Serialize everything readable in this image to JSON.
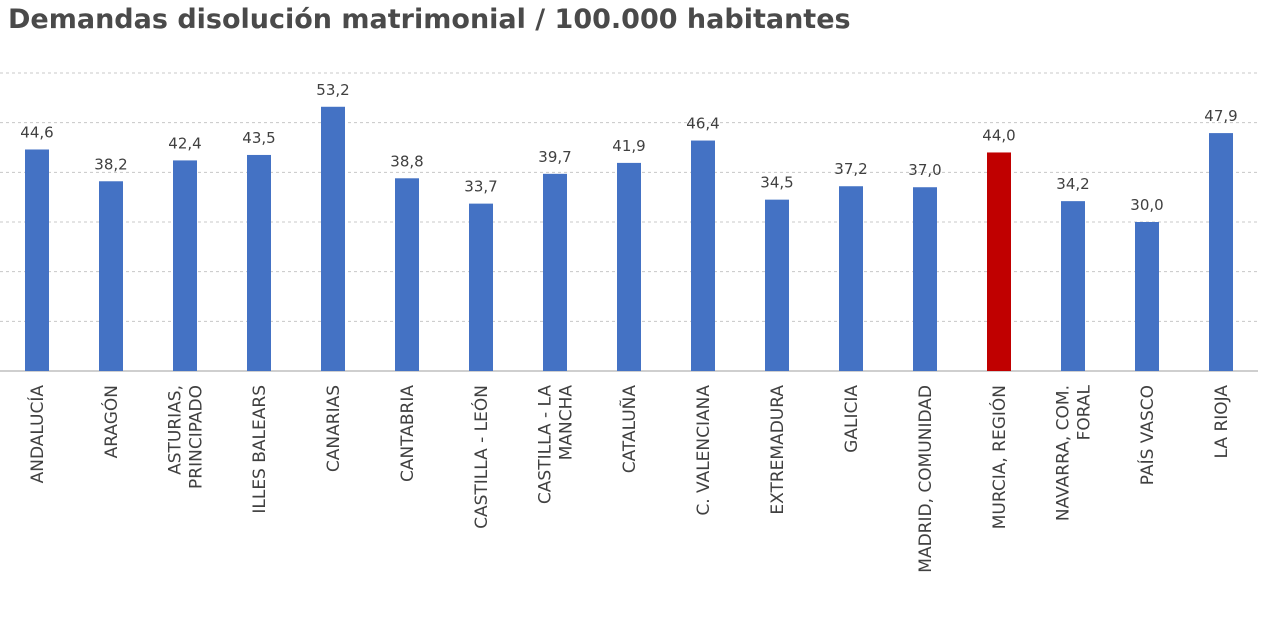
{
  "chart_data": {
    "type": "bar",
    "title": "Demandas disolución matrimonial / 100.000 habitantes",
    "xlabel": "",
    "ylabel": "",
    "ylim": [
      0,
      60
    ],
    "grid": true,
    "legend": "none",
    "bar_color": "#4472c4",
    "highlight_color": "#c00000",
    "highlight_index": 13,
    "categories": [
      [
        "ANDALUCÍA"
      ],
      [
        "ARAGÓN"
      ],
      [
        "ASTURIAS,",
        "PRINCIPADO"
      ],
      [
        "ILLES BALEARS"
      ],
      [
        "CANARIAS"
      ],
      [
        "CANTABRIA"
      ],
      [
        "CASTILLA - LEÓN"
      ],
      [
        "CASTILLA - LA",
        "MANCHA"
      ],
      [
        "CATALUÑA"
      ],
      [
        "C. VALENCIANA"
      ],
      [
        "EXTREMADURA"
      ],
      [
        "GALICIA"
      ],
      [
        "MADRID, COMUNIDAD"
      ],
      [
        "MURCIA, REGIÓN"
      ],
      [
        "NAVARRA, COM.",
        "FORAL"
      ],
      [
        "PAÍS VASCO"
      ],
      [
        "LA RIOJA"
      ]
    ],
    "values": [
      44.6,
      38.2,
      42.4,
      43.5,
      53.2,
      38.8,
      33.7,
      39.7,
      41.9,
      46.4,
      34.5,
      37.2,
      37.0,
      44.0,
      34.2,
      30.0,
      47.9
    ],
    "data_labels": [
      "44,6",
      "38,2",
      "42,4",
      "43,5",
      "53,2",
      "38,8",
      "33,7",
      "39,7",
      "41,9",
      "46,4",
      "34,5",
      "37,2",
      "37,0",
      "44,0",
      "34,2",
      "30,0",
      "47,9"
    ]
  }
}
